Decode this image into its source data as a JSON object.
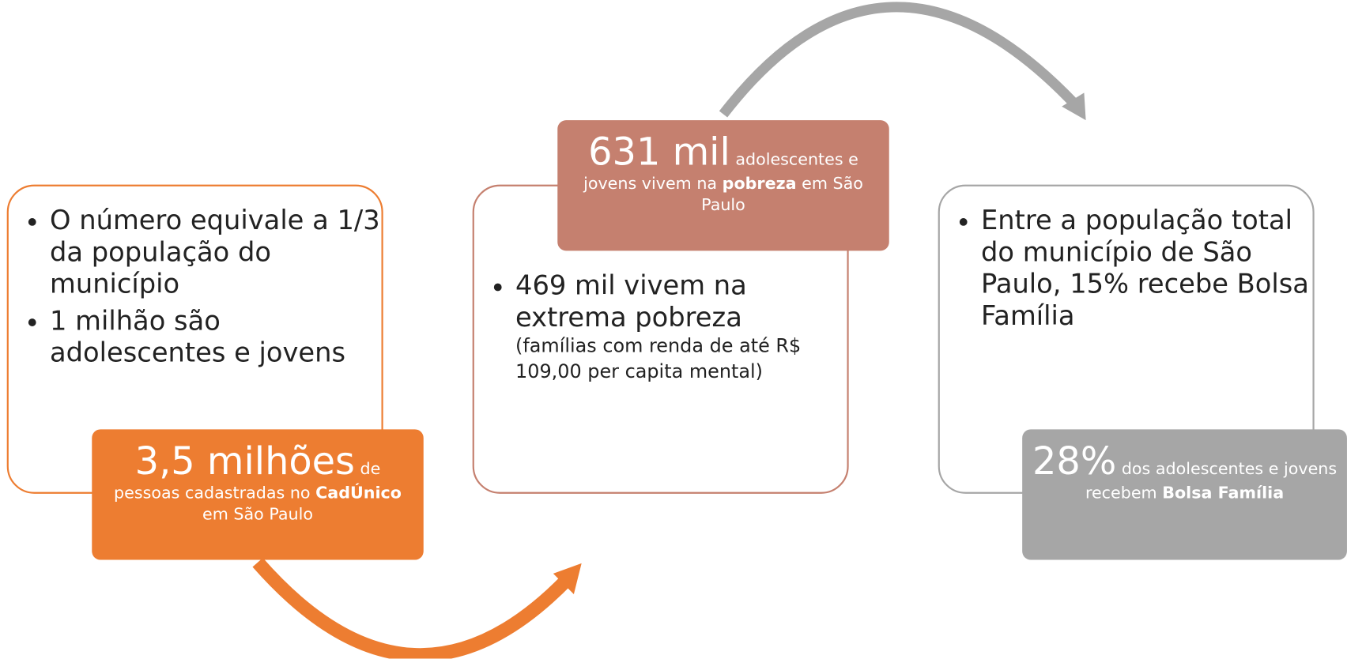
{
  "panels": [
    {
      "bullets": [
        "O número equivale a 1/3 da população do município",
        "1 milhão são adolescentes e jovens"
      ],
      "callout": {
        "big": "3,5 milhões",
        "text1": "de pessoas cadastradas no",
        "bold": "CadÚnico",
        "text2": "em São Paulo"
      }
    },
    {
      "bullets": [
        "469 mil vivem na extrema pobreza"
      ],
      "bullet_note": "(famílias com renda  de até R$ 109,00 per capita mental)",
      "callout": {
        "big": "631 mil",
        "text1": "adolescentes e jovens vivem na",
        "bold": "pobreza",
        "text2": "em São Paulo"
      }
    },
    {
      "bullets": [
        "Entre a população total do município de São Paulo, 15% recebe Bolsa Família"
      ],
      "callout": {
        "big": "28%",
        "text1": "dos adolescentes e jovens recebem",
        "bold": "Bolsa Família"
      }
    }
  ]
}
